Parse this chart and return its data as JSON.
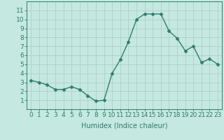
{
  "x": [
    0,
    1,
    2,
    3,
    4,
    5,
    6,
    7,
    8,
    9,
    10,
    11,
    12,
    13,
    14,
    15,
    16,
    17,
    18,
    19,
    20,
    21,
    22,
    23
  ],
  "y": [
    3.2,
    3.0,
    2.7,
    2.2,
    2.2,
    2.5,
    2.2,
    1.5,
    0.9,
    1.0,
    4.0,
    5.5,
    7.5,
    10.0,
    10.6,
    10.6,
    10.6,
    8.7,
    7.9,
    6.5,
    7.0,
    5.2,
    5.6,
    5.0
  ],
  "line_color": "#2e7d6e",
  "marker": "D",
  "marker_size": 2.5,
  "line_width": 1.0,
  "bg_color": "#c5e8e0",
  "grid_color": "#aed0c8",
  "xlabel": "Humidex (Indice chaleur)",
  "xlabel_fontsize": 7,
  "tick_fontsize": 6.5,
  "xlim": [
    -0.5,
    23.5
  ],
  "ylim": [
    0,
    12
  ],
  "yticks": [
    1,
    2,
    3,
    4,
    5,
    6,
    7,
    8,
    9,
    10,
    11
  ],
  "xticks": [
    0,
    1,
    2,
    3,
    4,
    5,
    6,
    7,
    8,
    9,
    10,
    11,
    12,
    13,
    14,
    15,
    16,
    17,
    18,
    19,
    20,
    21,
    22,
    23
  ]
}
